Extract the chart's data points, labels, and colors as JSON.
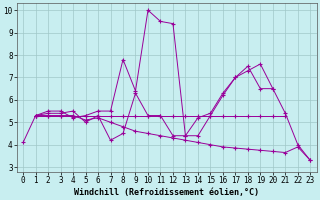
{
  "xlabel": "Windchill (Refroidissement éolien,°C)",
  "background_color": "#c8eef0",
  "line_color": "#990099",
  "xlim": [
    -0.5,
    23.5
  ],
  "ylim": [
    2.8,
    10.3
  ],
  "xticks": [
    0,
    1,
    2,
    3,
    4,
    5,
    6,
    7,
    8,
    9,
    10,
    11,
    12,
    13,
    14,
    15,
    16,
    17,
    18,
    19,
    20,
    21,
    22,
    23
  ],
  "yticks": [
    3,
    4,
    5,
    6,
    7,
    8,
    9,
    10
  ],
  "series": [
    {
      "x": [
        0,
        1,
        2,
        3,
        4,
        5,
        6,
        7,
        8,
        9,
        10,
        11,
        12,
        13,
        14,
        15,
        16,
        17,
        18,
        19,
        20,
        21,
        22,
        23
      ],
      "y": [
        4.1,
        5.3,
        5.5,
        5.5,
        5.2,
        5.3,
        5.5,
        5.5,
        7.8,
        6.4,
        10.0,
        9.5,
        9.4,
        4.4,
        5.2,
        5.4,
        6.3,
        7.0,
        7.3,
        7.6,
        6.5,
        5.4,
        4.0,
        3.3
      ]
    },
    {
      "x": [
        1,
        2,
        3,
        4,
        5,
        6,
        7,
        8,
        9,
        10,
        11,
        12,
        13,
        14,
        15,
        16,
        17,
        18,
        19,
        20
      ],
      "y": [
        5.3,
        5.4,
        5.4,
        5.5,
        5.0,
        5.3,
        4.2,
        4.5,
        6.3,
        5.3,
        5.3,
        4.4,
        4.4,
        4.4,
        5.3,
        6.2,
        7.0,
        7.5,
        6.5,
        6.5
      ]
    },
    {
      "x": [
        1,
        2,
        3,
        4,
        5,
        6,
        7,
        8,
        9,
        10,
        11,
        12,
        13,
        14,
        15,
        16,
        17,
        18,
        19,
        20,
        21
      ],
      "y": [
        5.3,
        5.3,
        5.3,
        5.3,
        5.3,
        5.3,
        5.3,
        5.3,
        5.3,
        5.3,
        5.3,
        5.3,
        5.3,
        5.3,
        5.3,
        5.3,
        5.3,
        5.3,
        5.3,
        5.3,
        5.3
      ]
    },
    {
      "x": [
        1,
        2,
        3,
        4,
        5,
        6,
        7,
        8,
        9,
        10,
        11,
        12,
        13,
        14,
        15,
        16,
        17,
        18,
        19,
        20,
        21,
        22,
        23
      ],
      "y": [
        5.3,
        5.3,
        5.3,
        5.3,
        5.1,
        5.2,
        5.0,
        4.8,
        4.6,
        4.5,
        4.4,
        4.3,
        4.2,
        4.1,
        4.0,
        3.9,
        3.85,
        3.8,
        3.75,
        3.7,
        3.65,
        3.9,
        3.3
      ]
    }
  ],
  "font_family": "monospace",
  "tick_fontsize": 5.5,
  "label_fontsize": 6,
  "grid_color": "#a0c8c8",
  "marker": "+"
}
